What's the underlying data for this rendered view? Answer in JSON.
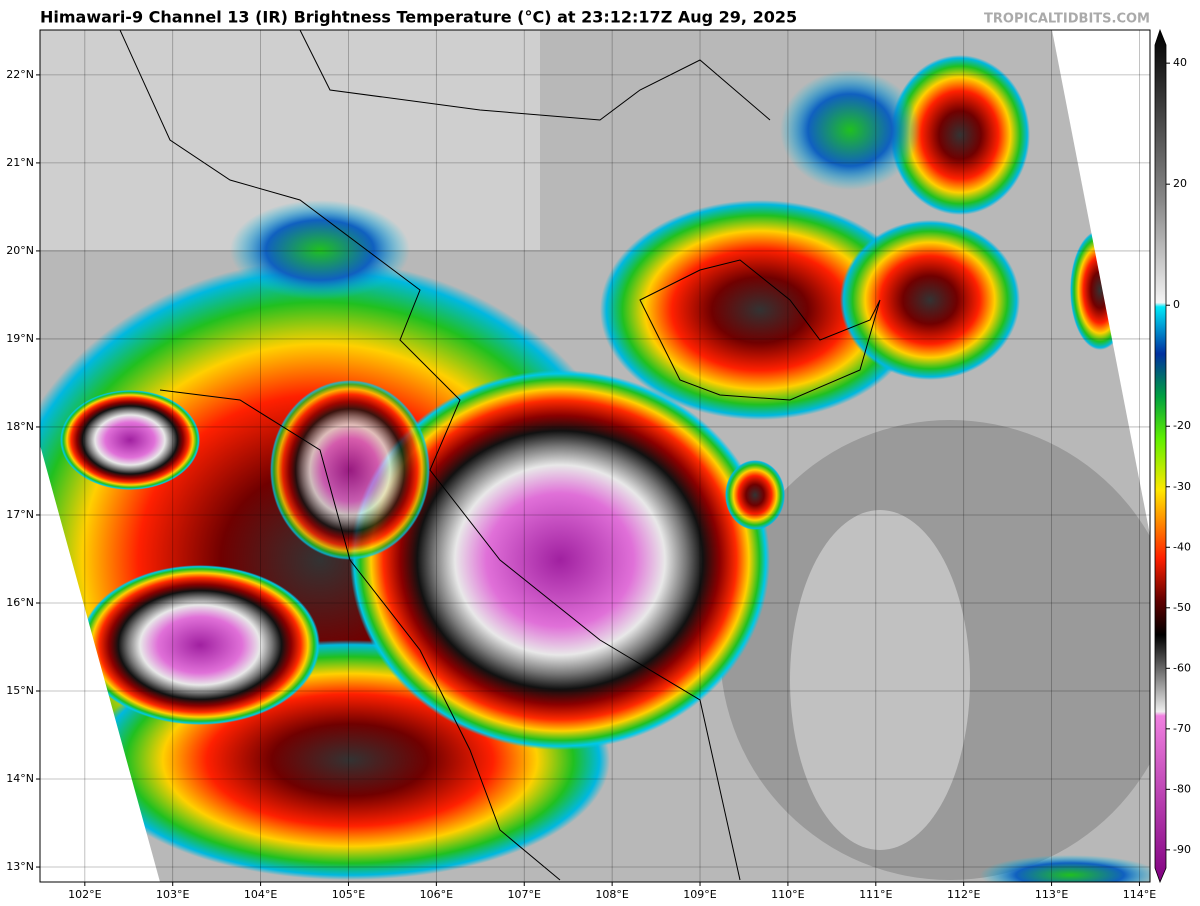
{
  "title": "Himawari-9 Channel 13 (IR) Brightness Temperature (°C) at 23:12:17Z Aug 29, 2025",
  "watermark": "TROPICALTIDBITS.COM",
  "map": {
    "xlim": [
      101.49,
      114.12
    ],
    "ylim": [
      12.83,
      22.51
    ],
    "xticks": [
      {
        "value": 102,
        "label": "102°E"
      },
      {
        "value": 103,
        "label": "103°E"
      },
      {
        "value": 104,
        "label": "104°E"
      },
      {
        "value": 105,
        "label": "105°E"
      },
      {
        "value": 106,
        "label": "106°E"
      },
      {
        "value": 107,
        "label": "107°E"
      },
      {
        "value": 108,
        "label": "108°E"
      },
      {
        "value": 109,
        "label": "109°E"
      },
      {
        "value": 110,
        "label": "110°E"
      },
      {
        "value": 111,
        "label": "111°E"
      },
      {
        "value": 112,
        "label": "112°E"
      },
      {
        "value": 113,
        "label": "113°E"
      },
      {
        "value": 114,
        "label": "114°E"
      }
    ],
    "yticks": [
      {
        "value": 13,
        "label": "13°N"
      },
      {
        "value": 14,
        "label": "14°N"
      },
      {
        "value": 15,
        "label": "15°N"
      },
      {
        "value": 16,
        "label": "16°N"
      },
      {
        "value": 17,
        "label": "17°N"
      },
      {
        "value": 18,
        "label": "18°N"
      },
      {
        "value": 19,
        "label": "19°N"
      },
      {
        "value": 20,
        "label": "20°N"
      },
      {
        "value": 21,
        "label": "21°N"
      },
      {
        "value": 22,
        "label": "22°N"
      }
    ],
    "grid": true
  },
  "colorbar": {
    "lim": [
      43,
      -93
    ],
    "ticks": [
      40,
      20,
      0,
      -20,
      -30,
      -40,
      -50,
      -60,
      -70,
      -80,
      -90
    ]
  }
}
